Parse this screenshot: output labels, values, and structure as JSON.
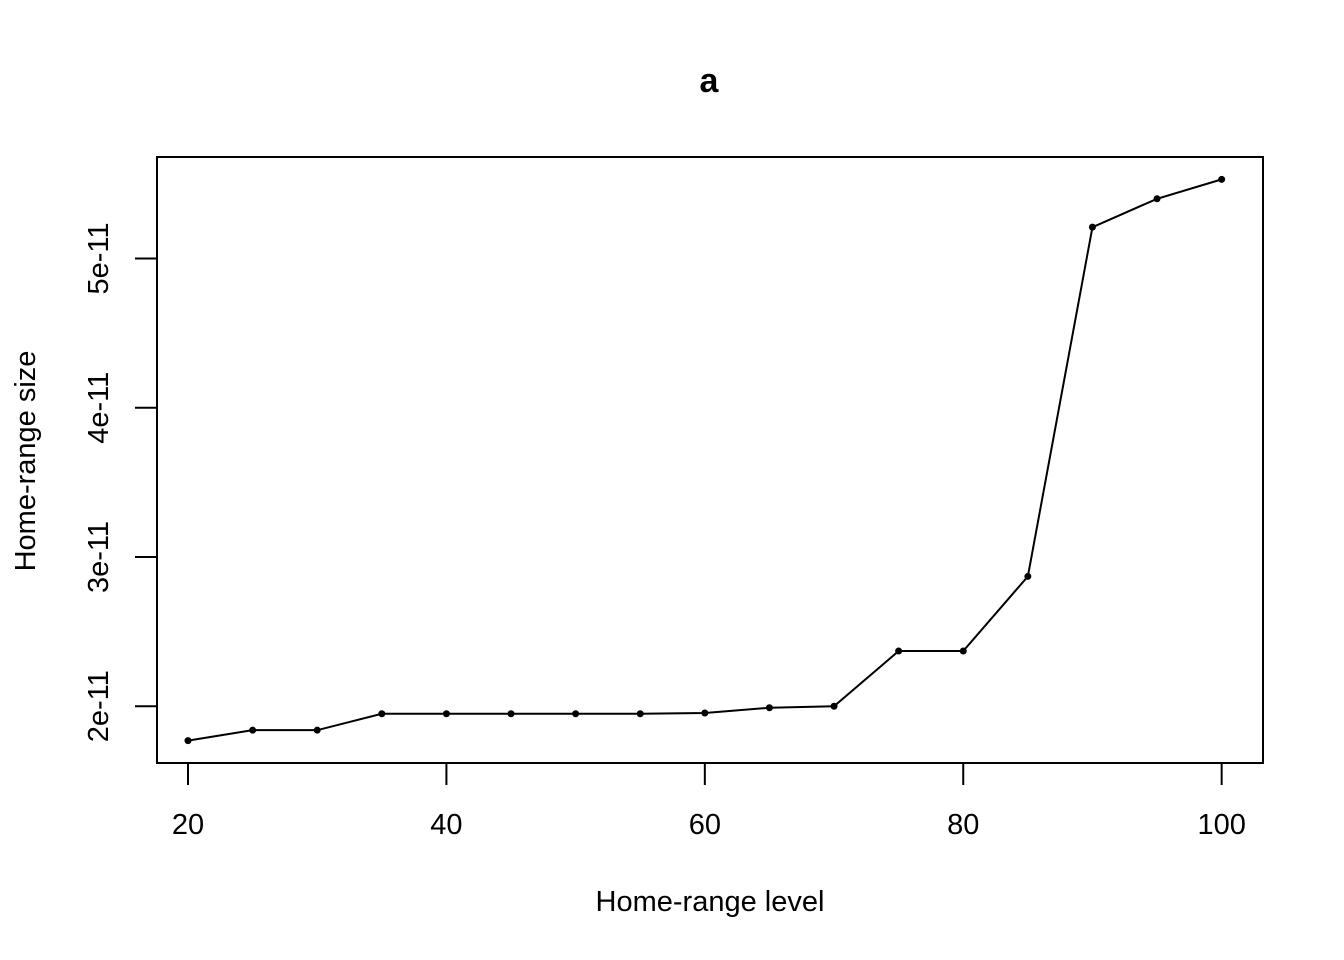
{
  "chart_data": {
    "type": "line",
    "title": "a",
    "xlabel": "Home-range level",
    "ylabel": "Home-range size",
    "x": [
      20,
      25,
      30,
      35,
      40,
      45,
      50,
      55,
      60,
      65,
      70,
      75,
      80,
      85,
      90,
      95,
      100
    ],
    "series": [
      {
        "values": [
          1.77e-11,
          1.84e-11,
          1.84e-11,
          1.95e-11,
          1.95e-11,
          1.95e-11,
          1.95e-11,
          1.95e-11,
          1.955e-11,
          1.99e-11,
          2e-11,
          2.37e-11,
          2.37e-11,
          2.87e-11,
          5.21e-11,
          5.4e-11,
          5.53e-11
        ]
      }
    ],
    "xlim": [
      17.6,
      103.2
    ],
    "ylim": [
      1.62e-11,
      5.68e-11
    ],
    "x_ticks": [
      20,
      40,
      60,
      80,
      100
    ],
    "x_tick_labels": [
      "20",
      "40",
      "60",
      "80",
      "100"
    ],
    "y_ticks": [
      2e-11,
      3e-11,
      4e-11,
      5e-11
    ],
    "y_tick_labels": [
      "2e-11",
      "3e-11",
      "4e-11",
      "5e-11"
    ],
    "grid": false,
    "markers": "points",
    "colors": {
      "line": "#000000",
      "points": "#000000",
      "background": "#ffffff"
    }
  }
}
